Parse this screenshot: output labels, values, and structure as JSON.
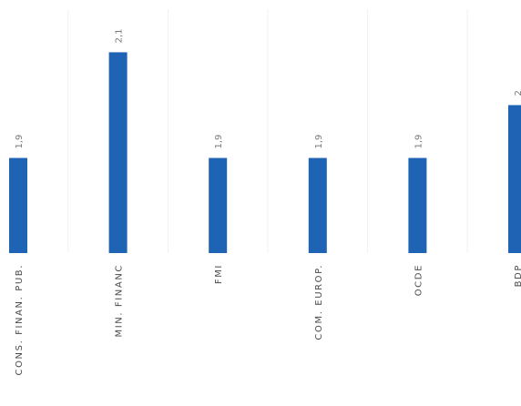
{
  "chart_data": {
    "type": "bar",
    "categories": [
      "CONS. FINAN. PUB.",
      "MIN. FINANC",
      "FMI",
      "COM. EUROP.",
      "OCDE",
      "BDP"
    ],
    "value_labels": [
      "1,9",
      "2,1",
      "1,9",
      "1,9",
      "1,9",
      "2"
    ],
    "values": [
      1.9,
      2.1,
      1.9,
      1.9,
      1.9,
      2.0
    ],
    "ylim": [
      1.72,
      2.13
    ],
    "grid": true,
    "legend": "none"
  },
  "colors": {
    "bar": "#1f63b5",
    "grid": "#f1f1f1",
    "value_label": "#7a7a7a",
    "category_label": "#4a4a4a"
  }
}
